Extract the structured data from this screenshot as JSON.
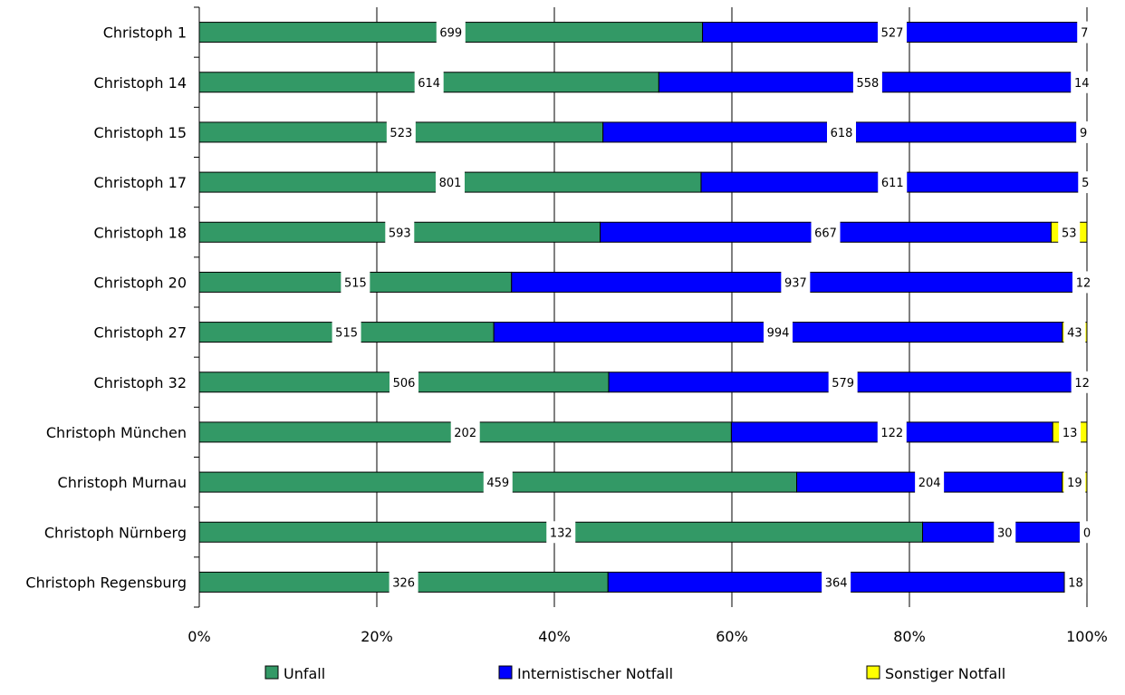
{
  "chart_data": {
    "type": "bar",
    "orientation": "horizontal",
    "stacked": "percent",
    "categories": [
      "Christoph 1",
      "Christoph 14",
      "Christoph 15",
      "Christoph 17",
      "Christoph 18",
      "Christoph 20",
      "Christoph 27",
      "Christoph 32",
      "Christoph München",
      "Christoph Murnau",
      "Christoph Nürnberg",
      "Christoph Regensburg"
    ],
    "series": [
      {
        "name": "Unfall",
        "color": "#339966",
        "values": [
          699,
          614,
          523,
          801,
          593,
          515,
          515,
          506,
          202,
          459,
          132,
          326
        ]
      },
      {
        "name": "Internistischer Notfall",
        "color": "#0000FF",
        "values": [
          527,
          558,
          618,
          611,
          667,
          937,
          994,
          579,
          122,
          204,
          30,
          364
        ]
      },
      {
        "name": "Sonstiger Notfall",
        "color": "#FFFF00",
        "values": [
          7,
          14,
          9,
          5,
          53,
          12,
          43,
          12,
          13,
          19,
          0,
          18
        ]
      }
    ],
    "x_ticks": [
      "0%",
      "20%",
      "40%",
      "60%",
      "80%",
      "100%"
    ],
    "xlim": [
      0,
      100
    ],
    "grid": "vertical",
    "legend": "bottom",
    "title": "",
    "xlabel": "",
    "ylabel": ""
  }
}
